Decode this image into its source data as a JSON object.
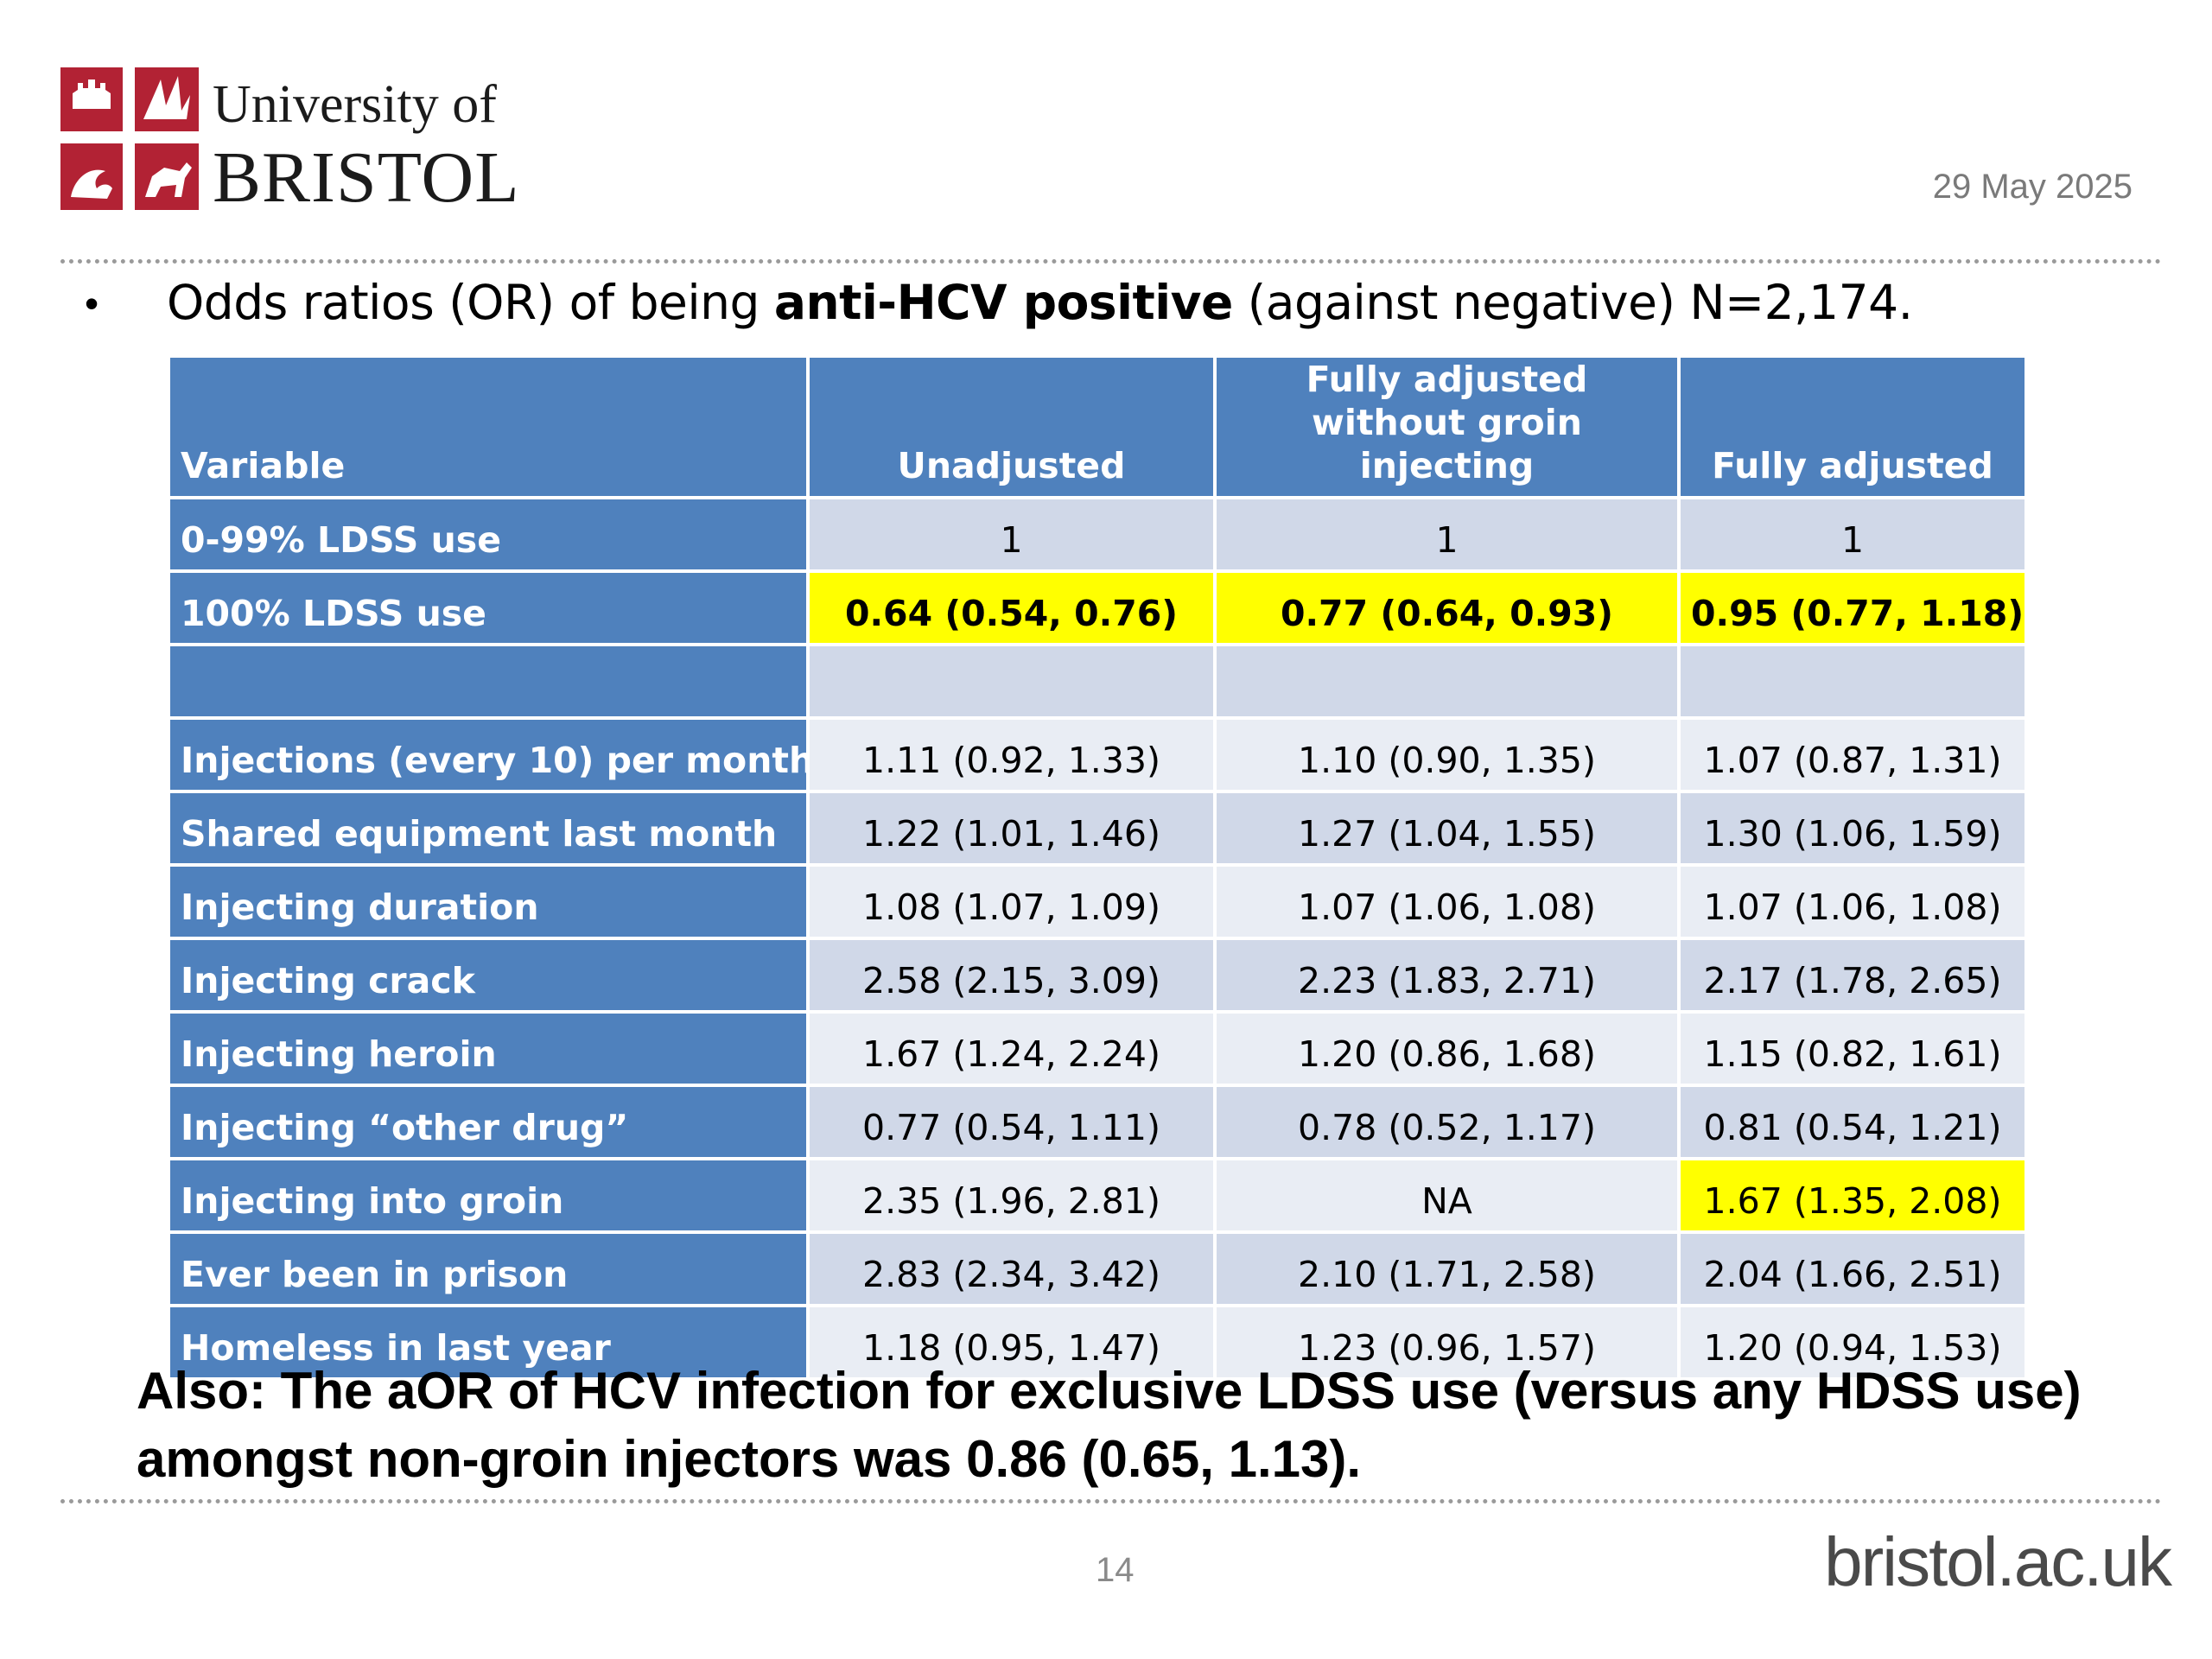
{
  "logo": {
    "line1": "University of",
    "line2": "BRISTOL"
  },
  "date": "29 May 2025",
  "heading": {
    "bullet": "•",
    "prefix": "Odds ratios (OR) of being ",
    "bold": "anti-HCV positive",
    "suffix": " (against negative) N=2,174."
  },
  "table": {
    "headers": [
      "Variable",
      "Unadjusted",
      "Fully adjusted without groin injecting",
      "Fully adjusted"
    ],
    "rows": [
      {
        "variable": "0-99% LDSS use",
        "values": [
          "1",
          "1",
          "1"
        ],
        "highlight": [
          false,
          false,
          false
        ],
        "bold": false
      },
      {
        "variable": "100% LDSS use",
        "values": [
          "0.64 (0.54, 0.76)",
          "0.77 (0.64, 0.93)",
          "0.95 (0.77, 1.18)"
        ],
        "highlight": [
          true,
          true,
          true
        ],
        "bold": true
      },
      {
        "variable": "",
        "values": [
          "",
          "",
          ""
        ],
        "highlight": [
          false,
          false,
          false
        ],
        "bold": false
      },
      {
        "variable": "Injections (every 10) per month",
        "values": [
          "1.11 (0.92, 1.33)",
          "1.10 (0.90, 1.35)",
          "1.07 (0.87, 1.31)"
        ],
        "highlight": [
          false,
          false,
          false
        ],
        "bold": false
      },
      {
        "variable": "Shared equipment last month",
        "values": [
          "1.22 (1.01, 1.46)",
          "1.27 (1.04, 1.55)",
          "1.30 (1.06, 1.59)"
        ],
        "highlight": [
          false,
          false,
          false
        ],
        "bold": false
      },
      {
        "variable": "Injecting duration",
        "values": [
          "1.08 (1.07, 1.09)",
          "1.07 (1.06, 1.08)",
          "1.07 (1.06, 1.08)"
        ],
        "highlight": [
          false,
          false,
          false
        ],
        "bold": false
      },
      {
        "variable": "Injecting crack",
        "values": [
          "2.58 (2.15, 3.09)",
          "2.23 (1.83, 2.71)",
          "2.17 (1.78, 2.65)"
        ],
        "highlight": [
          false,
          false,
          false
        ],
        "bold": false
      },
      {
        "variable": "Injecting heroin",
        "values": [
          "1.67 (1.24, 2.24)",
          "1.20 (0.86, 1.68)",
          "1.15 (0.82, 1.61)"
        ],
        "highlight": [
          false,
          false,
          false
        ],
        "bold": false
      },
      {
        "variable": "Injecting “other drug”",
        "values": [
          "0.77 (0.54, 1.11)",
          "0.78 (0.52, 1.17)",
          "0.81 (0.54, 1.21)"
        ],
        "highlight": [
          false,
          false,
          false
        ],
        "bold": false
      },
      {
        "variable": "Injecting into groin",
        "values": [
          "2.35 (1.96, 2.81)",
          "NA",
          "1.67 (1.35, 2.08)"
        ],
        "highlight": [
          false,
          false,
          true
        ],
        "bold": false
      },
      {
        "variable": "Ever been in prison",
        "values": [
          "2.83 (2.34, 3.42)",
          "2.10 (1.71, 2.58)",
          "2.04 (1.66, 2.51)"
        ],
        "highlight": [
          false,
          false,
          false
        ],
        "bold": false
      },
      {
        "variable": "Homeless in last year",
        "values": [
          "1.18 (0.95, 1.47)",
          "1.23 (0.96, 1.57)",
          "1.20 (0.94, 1.53)"
        ],
        "highlight": [
          false,
          false,
          false
        ],
        "bold": false
      }
    ]
  },
  "note": "Also: The aOR of HCV infection for exclusive LDSS use (versus any HDSS use) amongst non-groin injectors was 0.86 (0.65, 1.13).",
  "page_number": "14",
  "website": "bristol.ac.uk",
  "colors": {
    "header_blue": "#4f81bd",
    "highlight": "#ffff00",
    "crest_red": "#b22234"
  }
}
